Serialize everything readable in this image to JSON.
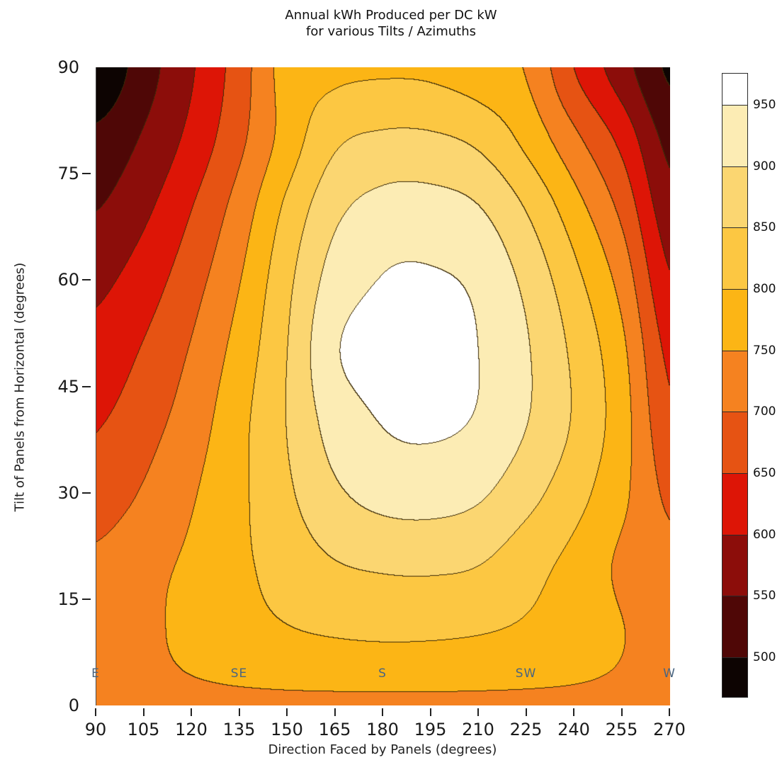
{
  "title": {
    "line1": "Annual kWh Produced per DC kW",
    "line2": "for various Tilts / Azimuths"
  },
  "axes": {
    "x_label": "Direction Faced by Panels (degrees)",
    "y_label": "Tilt of Panels from Horizontal (degrees)",
    "x_ticks": [
      90,
      105,
      120,
      135,
      150,
      165,
      180,
      195,
      210,
      225,
      240,
      255,
      270
    ],
    "y_ticks": [
      90,
      75,
      60,
      45,
      30,
      15,
      0
    ],
    "x_range": [
      90,
      270
    ],
    "y_range": [
      0,
      90
    ]
  },
  "colorbar": {
    "tick_labels": [
      950,
      900,
      850,
      800,
      750,
      700,
      650,
      600,
      550,
      500
    ]
  },
  "chart_data": {
    "type": "filled_contour",
    "title": "Annual kWh Produced per DC kW for various Tilts / Azimuths",
    "xlabel": "Direction Faced by Panels (degrees)",
    "ylabel": "Tilt of Panels from Horizontal (degrees)",
    "xlim": [
      90,
      270
    ],
    "ylim": [
      0,
      90
    ],
    "legend_position": "right-colorbar",
    "grid_visible": false,
    "levels": [
      500,
      550,
      600,
      650,
      700,
      750,
      800,
      850,
      900,
      950
    ],
    "band_colors": [
      "#0d0402",
      "#4f0706",
      "#8c0d0a",
      "#dd1506",
      "#e65313",
      "#f58220",
      "#fcb515",
      "#fcc742",
      "#fbd671",
      "#fcecb4",
      "#ffffff"
    ],
    "contour_line_color": "#3b2a08",
    "annotations": [
      {
        "text": "E",
        "azimuth": 90,
        "tilt": 4.5
      },
      {
        "text": "SE",
        "azimuth": 135,
        "tilt": 4.5
      },
      {
        "text": "S",
        "azimuth": 180,
        "tilt": 4.5
      },
      {
        "text": "SW",
        "azimuth": 225,
        "tilt": 4.5
      },
      {
        "text": "W",
        "azimuth": 270,
        "tilt": 4.5
      }
    ],
    "grid": {
      "azimuths": [
        90,
        105,
        120,
        135,
        150,
        165,
        180,
        195,
        210,
        225,
        240,
        255,
        270
      ],
      "tilts": [
        0,
        10,
        20,
        30,
        40,
        50,
        60,
        70,
        80,
        90
      ],
      "values": [
        [
          742,
          742,
          742,
          742,
          742,
          742,
          742,
          742,
          742,
          742,
          742,
          742,
          742
        ],
        [
          722,
          740,
          762,
          781,
          795,
          803,
          807,
          806,
          801,
          791,
          776,
          752,
          725
        ],
        [
          710,
          736,
          758,
          790,
          822,
          848,
          858,
          860,
          852,
          820,
          786,
          742,
          714
        ],
        [
          672,
          705,
          745,
          790,
          842,
          892,
          918,
          922,
          908,
          868,
          820,
          762,
          690
        ],
        [
          646,
          680,
          725,
          786,
          852,
          922,
          952,
          958,
          945,
          902,
          845,
          772,
          662
        ],
        [
          617,
          655,
          705,
          770,
          850,
          945,
          962,
          965,
          950,
          905,
          840,
          762,
          638
        ],
        [
          588,
          625,
          680,
          748,
          838,
          922,
          952,
          955,
          940,
          888,
          815,
          732,
          605
        ],
        [
          549,
          590,
          650,
          722,
          812,
          888,
          918,
          920,
          903,
          848,
          772,
          688,
          570
        ],
        [
          512,
          556,
          615,
          688,
          772,
          840,
          858,
          857,
          838,
          786,
          712,
          635,
          535
        ],
        [
          455,
          527,
          595,
          675,
          772,
          788,
          793,
          790,
          772,
          746,
          650,
          572,
          492
        ]
      ]
    }
  }
}
